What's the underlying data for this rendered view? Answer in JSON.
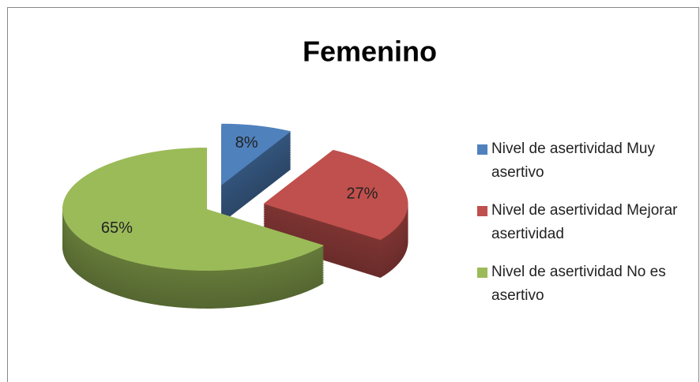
{
  "chart_data": {
    "type": "pie",
    "title": "Femenino",
    "categories": [
      "Nivel de asertividad Muy asertivo",
      "Nivel de asertividad Mejorar asertividad",
      "Nivel de asertividad No es asertivo"
    ],
    "values": [
      8,
      27,
      65
    ],
    "value_labels": [
      "8%",
      "27%",
      "65%"
    ],
    "colors": [
      "#4f81bd",
      "#c0504d",
      "#9bbb59"
    ],
    "exploded": [
      true,
      true,
      false
    ],
    "legend": "right"
  }
}
